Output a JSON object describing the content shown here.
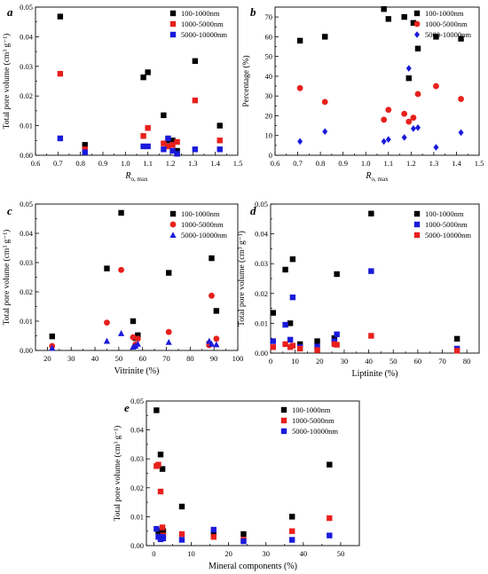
{
  "colors": {
    "black": "#000000",
    "red": "#e8201c",
    "blue": "#1a1adb"
  },
  "chart_data": [
    {
      "panel": "a",
      "type": "scatter",
      "xlabel_main": "R",
      "xlabel_sub": "o, max",
      "ylabel": "Total pore volume (cm³ g⁻¹)",
      "xlim": [
        0.6,
        1.5
      ],
      "ylim": [
        0,
        0.05
      ],
      "xticks": [
        "0.6",
        "0.7",
        "0.8",
        "0.9",
        "1.0",
        "1.1",
        "1.2",
        "1.3",
        "1.4",
        "1.5"
      ],
      "yticks": [
        "0.00",
        "0.01",
        "0.02",
        "0.03",
        "0.04",
        "0.05"
      ],
      "legend_position": "top-right",
      "series": [
        {
          "name": "100-1000nm",
          "color": "black",
          "marker": "square",
          "x": [
            0.71,
            0.82,
            1.08,
            1.1,
            1.17,
            1.19,
            1.21,
            1.23,
            1.31,
            1.42
          ],
          "y": [
            0.0468,
            0.0035,
            0.0263,
            0.028,
            0.0135,
            0.005,
            0.005,
            0.0015,
            0.0318,
            0.01
          ]
        },
        {
          "name": "1000-5000nm",
          "color": "red",
          "marker": "square",
          "x": [
            0.71,
            0.82,
            1.08,
            1.1,
            1.17,
            1.19,
            1.21,
            1.23,
            1.31,
            1.42
          ],
          "y": [
            0.0275,
            0.002,
            0.0065,
            0.0092,
            0.004,
            0.003,
            0.0035,
            0.0045,
            0.0185,
            0.005
          ]
        },
        {
          "name": "5000-10000nm",
          "color": "blue",
          "marker": "square",
          "x": [
            0.71,
            0.82,
            1.08,
            1.1,
            1.17,
            1.19,
            1.21,
            1.23,
            1.31,
            1.42
          ],
          "y": [
            0.0057,
            0.001,
            0.003,
            0.003,
            0.002,
            0.0057,
            0.0015,
            0.0005,
            0.002,
            0.002
          ]
        }
      ]
    },
    {
      "panel": "b",
      "type": "scatter",
      "xlabel_main": "R",
      "xlabel_sub": "o, max",
      "ylabel": "Percentage (%)",
      "xlim": [
        0.6,
        1.5
      ],
      "ylim": [
        0,
        75
      ],
      "xticks": [
        "0.6",
        "0.7",
        "0.8",
        "0.9",
        "1.0",
        "1.1",
        "1.2",
        "1.3",
        "1.4",
        "1.5"
      ],
      "yticks": [
        "0",
        "10",
        "20",
        "30",
        "40",
        "50",
        "60",
        "70"
      ],
      "legend_position": "top-right",
      "series": [
        {
          "name": "100-1000nm",
          "color": "black",
          "marker": "square",
          "x": [
            0.71,
            0.82,
            1.08,
            1.1,
            1.17,
            1.19,
            1.21,
            1.23,
            1.31,
            1.42
          ],
          "y": [
            58,
            60,
            74,
            69,
            70,
            39,
            67,
            54,
            60,
            59
          ]
        },
        {
          "name": "1000-5000nm",
          "color": "red",
          "marker": "circle",
          "x": [
            0.71,
            0.82,
            1.08,
            1.1,
            1.17,
            1.19,
            1.21,
            1.23,
            1.31,
            1.42
          ],
          "y": [
            34,
            27,
            18,
            23,
            21,
            17,
            19,
            31,
            35,
            28.5
          ]
        },
        {
          "name": "5000-10000nm",
          "color": "blue",
          "marker": "diamond",
          "x": [
            0.71,
            0.82,
            1.08,
            1.1,
            1.17,
            1.19,
            1.21,
            1.23,
            1.31,
            1.42
          ],
          "y": [
            7,
            12,
            7,
            8,
            9,
            44,
            13.5,
            14,
            4,
            11.5
          ]
        }
      ]
    },
    {
      "panel": "c",
      "type": "scatter",
      "xlabel_main": "Vitrinite (%)",
      "ylabel": "Total pore volume (cm³ g⁻¹)",
      "xlim": [
        15,
        100
      ],
      "ylim": [
        0,
        0.05
      ],
      "xticks": [
        "20",
        "30",
        "40",
        "50",
        "60",
        "70",
        "80",
        "90",
        "100"
      ],
      "yticks": [
        "0.00",
        "0.01",
        "0.02",
        "0.03",
        "0.04",
        "0.05"
      ],
      "legend_position": "top-right",
      "series": [
        {
          "name": "100-1000nm",
          "color": "black",
          "marker": "square",
          "x": [
            22,
            45,
            51,
            56,
            57,
            58,
            71,
            88,
            89,
            91
          ],
          "y": [
            0.0048,
            0.028,
            0.047,
            0.01,
            0.0042,
            0.0052,
            0.0265,
            0.0022,
            0.0315,
            0.0135
          ]
        },
        {
          "name": "1000-5000nm",
          "color": "red",
          "marker": "circle",
          "x": [
            22,
            45,
            51,
            56,
            57,
            58,
            71,
            88,
            89,
            91
          ],
          "y": [
            0.0015,
            0.0095,
            0.0275,
            0.0045,
            0.002,
            0.004,
            0.0063,
            0.0018,
            0.0187,
            0.004
          ]
        },
        {
          "name": "5000-10000nm",
          "color": "blue",
          "marker": "triangle",
          "x": [
            22,
            45,
            51,
            56,
            57,
            58,
            71,
            88,
            89,
            91
          ],
          "y": [
            0.0008,
            0.0032,
            0.0058,
            0.0012,
            0.0015,
            0.0022,
            0.0028,
            0.0032,
            0.0022,
            0.002
          ]
        }
      ]
    },
    {
      "panel": "d",
      "type": "scatter",
      "xlabel_main": "Liptinite (%)",
      "ylabel": "Total pore volume (cm³ g⁻¹)",
      "xlim": [
        0,
        85
      ],
      "ylim": [
        0,
        0.05
      ],
      "xticks": [
        "0",
        "10",
        "20",
        "30",
        "40",
        "50",
        "60",
        "70",
        "80"
      ],
      "yticks": [
        "0.00",
        "0.01",
        "0.02",
        "0.03",
        "0.04",
        "0.05"
      ],
      "legend_position": "top-right",
      "series": [
        {
          "name": "100-1000nm",
          "color": "black",
          "marker": "square",
          "x": [
            1,
            6,
            8,
            9,
            12,
            19,
            26,
            27,
            41,
            76
          ],
          "y": [
            0.0135,
            0.028,
            0.01,
            0.0315,
            0.003,
            0.004,
            0.005,
            0.0265,
            0.0468,
            0.0048
          ]
        },
        {
          "name": "1000-5000nm",
          "color": "blue",
          "marker": "square",
          "x": [
            1,
            6,
            8,
            9,
            12,
            19,
            26,
            27,
            41,
            76
          ],
          "y": [
            0.004,
            0.0095,
            0.0045,
            0.0187,
            0.002,
            0.0022,
            0.004,
            0.0063,
            0.0275,
            0.0015
          ]
        },
        {
          "name": "5000-10000nm",
          "color": "red",
          "marker": "square",
          "x": [
            1,
            6,
            8,
            9,
            12,
            19,
            26,
            27,
            41,
            76
          ],
          "y": [
            0.002,
            0.003,
            0.002,
            0.0025,
            0.0015,
            0.001,
            0.003,
            0.0028,
            0.0058,
            0.0008
          ]
        }
      ]
    },
    {
      "panel": "e",
      "type": "scatter",
      "xlabel_main": "Mineral components (%)",
      "ylabel": "Total pore volume (cm³ g⁻¹)",
      "xlim": [
        -2,
        55
      ],
      "ylim": [
        0,
        0.05
      ],
      "xticks": [
        "0",
        "10",
        "20",
        "30",
        "40",
        "50"
      ],
      "yticks": [
        "0.00",
        "0.01",
        "0.02",
        "0.03",
        "0.04",
        "0.05"
      ],
      "legend_position": "top-right",
      "series": [
        {
          "name": "100-1000nm",
          "color": "black",
          "marker": "square",
          "x": [
            0.7,
            1.2,
            1.8,
            2.3,
            2.5,
            7.5,
            16,
            24,
            37,
            47
          ],
          "y": [
            0.0468,
            0.005,
            0.0315,
            0.0265,
            0.005,
            0.0135,
            0.004,
            0.004,
            0.01,
            0.028
          ]
        },
        {
          "name": "1000-5000nm",
          "color": "red",
          "marker": "square",
          "x": [
            0.7,
            1.2,
            1.8,
            2.3,
            2.5,
            7.5,
            16,
            24,
            37,
            47
          ],
          "y": [
            0.0275,
            0.028,
            0.0187,
            0.0063,
            0.0035,
            0.004,
            0.003,
            0.002,
            0.005,
            0.0095
          ]
        },
        {
          "name": "5000-10000nm",
          "color": "blue",
          "marker": "square",
          "x": [
            0.7,
            1.2,
            1.8,
            2.3,
            2.5,
            7.5,
            16,
            24,
            37,
            47
          ],
          "y": [
            0.0058,
            0.003,
            0.0022,
            0.003,
            0.0025,
            0.002,
            0.0055,
            0.0015,
            0.002,
            0.0035
          ]
        }
      ]
    }
  ]
}
